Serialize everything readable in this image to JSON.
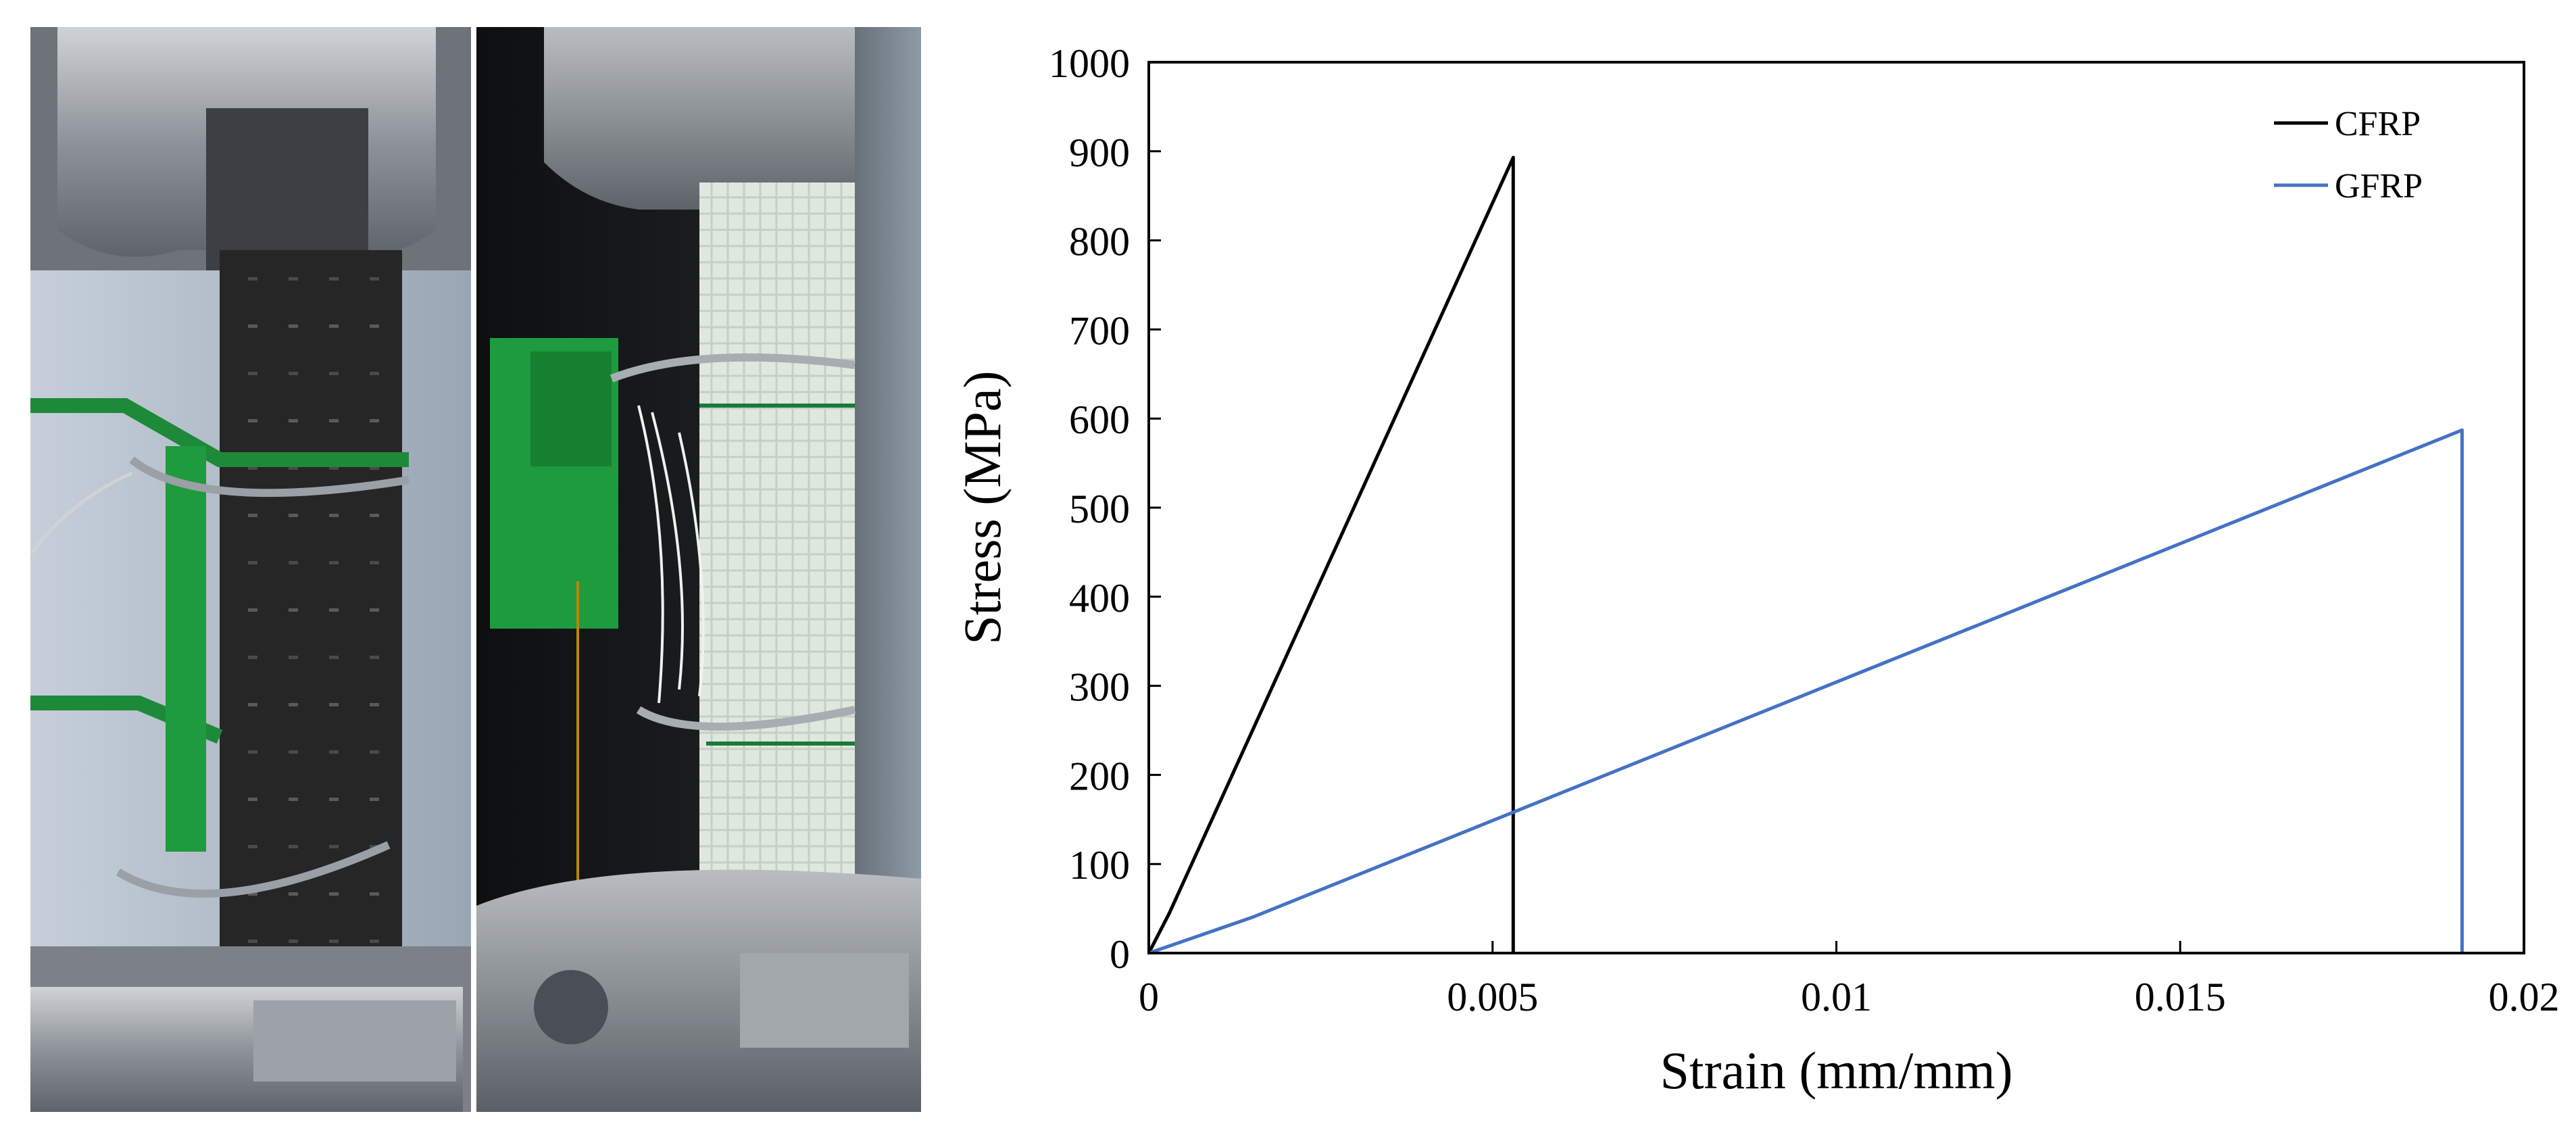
{
  "photos": [
    {
      "name": "cfrp-specimen-photo",
      "specimen": "CFRP",
      "color": "#2a2a2a"
    },
    {
      "name": "gfrp-specimen-photo",
      "specimen": "GFRP",
      "color": "#dfe8df"
    }
  ],
  "chart_data": {
    "type": "line",
    "title": "",
    "xlabel": "Strain (mm/mm)",
    "ylabel": "Stress (MPa)",
    "xlim": [
      0,
      0.02
    ],
    "ylim": [
      0,
      1000
    ],
    "x_ticks": [
      0,
      0.005,
      0.01,
      0.015,
      0.02
    ],
    "x_tick_labels": [
      "0",
      "0.005",
      "0.01",
      "0.015",
      "0.02"
    ],
    "y_ticks": [
      0,
      100,
      200,
      300,
      400,
      500,
      600,
      700,
      800,
      900,
      1000
    ],
    "y_tick_labels": [
      "0",
      "100",
      "200",
      "300",
      "400",
      "500",
      "600",
      "700",
      "800",
      "900",
      "1000"
    ],
    "grid": false,
    "legend_position": "top-right",
    "series": [
      {
        "name": "CFRP",
        "color": "#000000",
        "points": [
          [
            0,
            0
          ],
          [
            0.0003,
            45
          ],
          [
            0.0053,
            893
          ],
          [
            0.0053,
            0
          ]
        ]
      },
      {
        "name": "GFRP",
        "color": "#4472C4",
        "points": [
          [
            0,
            0
          ],
          [
            0.0015,
            40
          ],
          [
            0.0191,
            587
          ],
          [
            0.0191,
            0
          ]
        ]
      }
    ]
  }
}
